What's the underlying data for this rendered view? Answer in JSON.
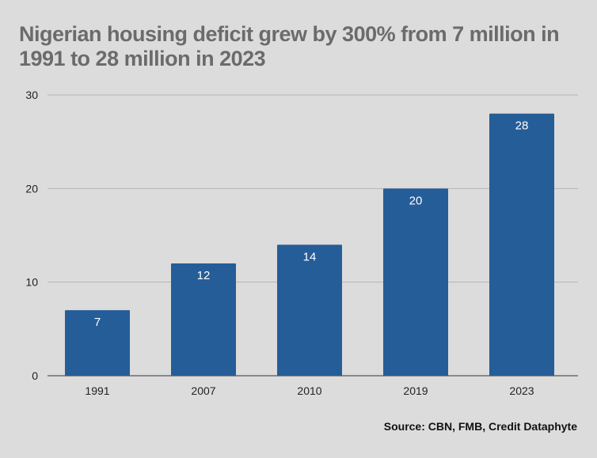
{
  "chart_data": {
    "type": "bar",
    "title": "Nigerian housing deficit grew by 300% from 7 million in 1991 to 28 million in 2023",
    "xlabel": "",
    "ylabel": "",
    "categories": [
      "1991",
      "2007",
      "2010",
      "2019",
      "2023"
    ],
    "values": [
      7,
      12,
      14,
      20,
      28
    ],
    "data_labels": [
      "7",
      "12",
      "14",
      "20",
      "28"
    ],
    "ylim": [
      0,
      30
    ],
    "yticks": [
      0,
      10,
      20,
      30
    ],
    "ytick_labels": [
      "0",
      "10",
      "20",
      "30"
    ],
    "grid": true,
    "legend": "none",
    "source": "Source: CBN, FMB, Credit Dataphyte",
    "colors": {
      "bar": "#255d98",
      "background": "#dcdcdc",
      "grid": "#b4b4b4",
      "axis": "#555555",
      "title": "#6b6b6b",
      "label": "#ffffff"
    }
  }
}
